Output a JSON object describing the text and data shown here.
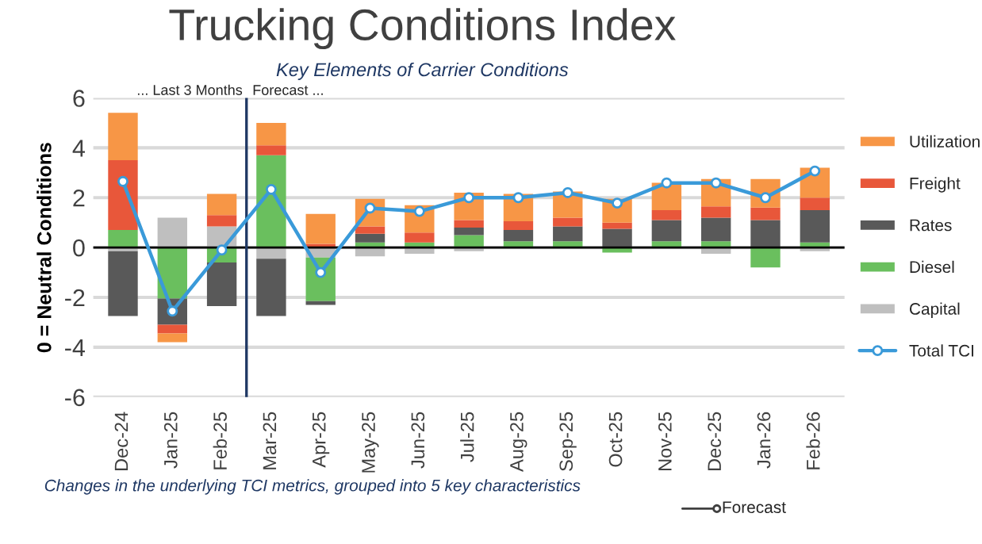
{
  "chart_data": {
    "type": "bar",
    "stacked": true,
    "title": "Trucking Conditions Index",
    "subtitle": "Key Elements of Carrier Conditions",
    "ylabel": "0 = Neutral Conditions",
    "categories": [
      "Dec-24",
      "Jan-25",
      "Feb-25",
      "Mar-25",
      "Apr-25",
      "May-25",
      "Jun-25",
      "Jul-25",
      "Aug-25",
      "Sep-25",
      "Oct-25",
      "Nov-25",
      "Dec-25",
      "Jan-26",
      "Feb-26"
    ],
    "series": [
      {
        "name": "Capital",
        "color": "#bfbfbf",
        "values": [
          -0.15,
          1.2,
          0.85,
          -0.45,
          -0.4,
          -0.35,
          -0.25,
          -0.15,
          null,
          0,
          null,
          0,
          -0.25,
          0,
          -0.15
        ]
      },
      {
        "name": "Diesel",
        "color": "#6abf5e",
        "values": [
          0.7,
          -2.05,
          -0.6,
          3.7,
          -1.75,
          0.2,
          0.2,
          0.5,
          0.25,
          0.25,
          -0.2,
          0.25,
          0.25,
          -0.8,
          0.2
        ]
      },
      {
        "name": "Rates",
        "color": "#595959",
        "values": [
          -2.6,
          -1.05,
          -1.75,
          -2.3,
          -0.15,
          0.35,
          0,
          0.3,
          0.45,
          0.6,
          0.75,
          0.85,
          0.95,
          1.1,
          1.3
        ]
      },
      {
        "name": "Freight",
        "color": "#e8573a",
        "values": [
          2.8,
          -0.35,
          0.45,
          0.4,
          0.15,
          0.3,
          0.4,
          0.3,
          0.35,
          0.35,
          0.25,
          0.4,
          0.45,
          0.5,
          0.5
        ]
      },
      {
        "name": "Utilization",
        "color": "#f79646",
        "values": [
          1.9,
          -0.35,
          0.85,
          0.9,
          1.2,
          1.1,
          1.1,
          1.1,
          1.1,
          1.05,
          0.95,
          1.1,
          1.1,
          1.15,
          1.2
        ]
      },
      {
        "name": "Total TCI",
        "type": "line",
        "color": "#3a9ad9",
        "marker": "circle",
        "values": [
          2.65,
          -2.55,
          -0.1,
          2.33,
          -1.0,
          1.58,
          1.45,
          2.0,
          2.0,
          2.2,
          1.78,
          2.59,
          2.59,
          2.0,
          3.07
        ]
      }
    ],
    "ylim": [
      -6,
      6
    ],
    "yticks": [
      -6,
      -4,
      -2,
      0,
      2,
      4,
      6
    ],
    "grid": "y",
    "legend": "right",
    "ref_lines": [
      {
        "axis": "x",
        "value": "Mar-25",
        "color": "#1f3864"
      }
    ],
    "annotations": [
      "... Last 3 Months",
      "Forecast ...",
      "Forecast",
      "Changes in the underlying TCI metrics, grouped into 5 key characteristics"
    ]
  }
}
